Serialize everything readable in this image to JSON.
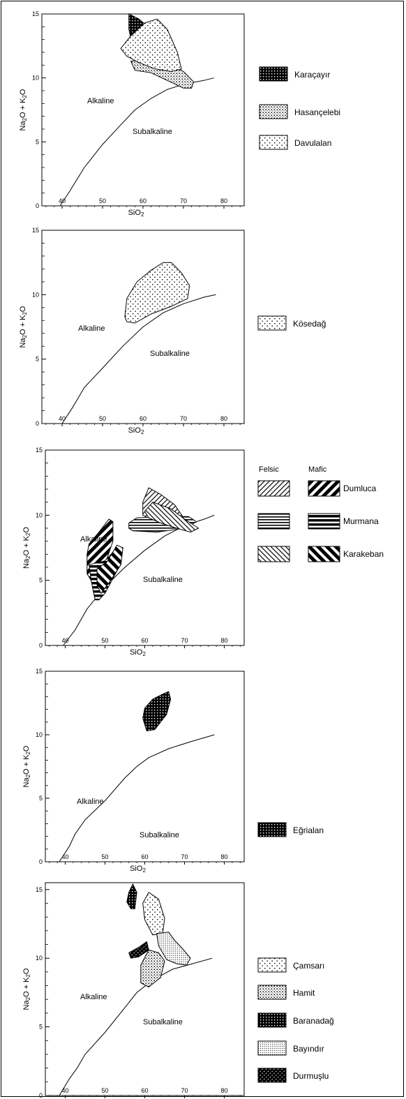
{
  "colors": {
    "ink": "#000000",
    "background": "#ffffff"
  },
  "chart_data": [
    {
      "type": "scatter",
      "title": "",
      "xlabel": "SiO2",
      "ylabel": "Na2O + K2O",
      "xlim": [
        35,
        85
      ],
      "ylim": [
        0,
        15
      ],
      "xticks": [
        "40",
        "50",
        "60",
        "70",
        "80"
      ],
      "yticks": [
        "0",
        "5",
        "10",
        "15"
      ],
      "grid": false,
      "legend_position": "right",
      "region_labels": [
        "Alkaline",
        "Subalkaline"
      ],
      "boundary": [
        [
          39.5,
          0
        ],
        [
          42,
          1.2
        ],
        [
          45.5,
          3
        ],
        [
          50,
          4.8
        ],
        [
          55,
          6.5
        ],
        [
          58,
          7.5
        ],
        [
          62,
          8.4
        ],
        [
          66,
          9.1
        ],
        [
          70,
          9.5
        ],
        [
          75,
          9.8
        ],
        [
          77.5,
          10
        ]
      ],
      "series": [
        {
          "name": "Karaçayır",
          "pattern": "dense",
          "polygon": [
            [
              56.5,
              15
            ],
            [
              59,
              14.6
            ],
            [
              62,
              13.8
            ],
            [
              63,
              12.5
            ],
            [
              62.5,
              11.3
            ],
            [
              61,
              10.8
            ],
            [
              59,
              11.2
            ],
            [
              57.5,
              12.3
            ],
            [
              56.5,
              13.8
            ]
          ]
        },
        {
          "name": "Hasançelebi",
          "pattern": "fine",
          "polygon": [
            [
              57,
              11.3
            ],
            [
              62,
              11.5
            ],
            [
              67,
              11
            ],
            [
              70,
              10.5
            ],
            [
              72.5,
              9.7
            ],
            [
              72,
              9.2
            ],
            [
              70,
              9.2
            ],
            [
              66,
              9.8
            ],
            [
              62,
              10.4
            ],
            [
              58,
              10.6
            ]
          ]
        },
        {
          "name": "Davulalan",
          "pattern": "sparse",
          "polygon": [
            [
              54.5,
              12.3
            ],
            [
              57,
              13.3
            ],
            [
              60.5,
              14.3
            ],
            [
              63.5,
              14.6
            ],
            [
              66,
              13.8
            ],
            [
              68.5,
              12
            ],
            [
              69.5,
              10.7
            ],
            [
              67,
              10.5
            ],
            [
              63,
              10.7
            ],
            [
              59,
              11.2
            ],
            [
              56,
              11.7
            ]
          ]
        }
      ]
    },
    {
      "type": "scatter",
      "title": "",
      "xlabel": "SiO2",
      "ylabel": "Na2O + K2O",
      "xlim": [
        35,
        85
      ],
      "ylim": [
        0,
        15
      ],
      "xticks": [
        "40",
        "50",
        "60",
        "70",
        "80"
      ],
      "yticks": [
        "0",
        "5",
        "10",
        "15"
      ],
      "grid": false,
      "legend_position": "right",
      "region_labels": [
        "Alkaline",
        "Subalkaline"
      ],
      "boundary": [
        [
          40,
          0
        ],
        [
          42.5,
          1.2
        ],
        [
          45.5,
          2.8
        ],
        [
          50,
          4.3
        ],
        [
          55,
          6
        ],
        [
          60,
          7.5
        ],
        [
          65,
          8.6
        ],
        [
          70,
          9.3
        ],
        [
          75,
          9.8
        ],
        [
          78,
          10
        ]
      ],
      "series": [
        {
          "name": "Kösedağ",
          "pattern": "sparse",
          "polygon": [
            [
              55.5,
              8.3
            ],
            [
              56,
              9.7
            ],
            [
              58.5,
              11
            ],
            [
              62,
              11.9
            ],
            [
              65,
              12.5
            ],
            [
              67,
              12.5
            ],
            [
              69.5,
              11.7
            ],
            [
              71.5,
              10.7
            ],
            [
              71,
              9.7
            ],
            [
              67,
              9.1
            ],
            [
              62,
              8.5
            ],
            [
              58,
              7.8
            ],
            [
              56,
              7.9
            ]
          ]
        }
      ]
    },
    {
      "type": "scatter",
      "title": "",
      "xlabel": "SiO2",
      "ylabel": "Na2O + K2O",
      "xlim": [
        35,
        85
      ],
      "ylim": [
        0,
        15
      ],
      "xticks": [
        "40",
        "50",
        "60",
        "70",
        "80"
      ],
      "yticks": [
        "0",
        "5",
        "10",
        "15"
      ],
      "grid": false,
      "legend_position": "right",
      "region_labels": [
        "Alkaline",
        "Subalkaline"
      ],
      "legend_headers": [
        "Felsic",
        "Mafic"
      ],
      "boundary": [
        [
          39.5,
          0
        ],
        [
          42.5,
          1.2
        ],
        [
          45.5,
          2.8
        ],
        [
          50,
          4.5
        ],
        [
          55,
          6
        ],
        [
          60,
          7.3
        ],
        [
          65,
          8.4
        ],
        [
          70,
          9.2
        ],
        [
          75,
          9.7
        ],
        [
          77.5,
          10
        ]
      ],
      "series": [
        {
          "name": "Dumluca",
          "group": "Mafic",
          "pattern": "diag-thick",
          "polygon": [
            [
              46,
              7.8
            ],
            [
              48.5,
              8.7
            ],
            [
              51,
              9.7
            ],
            [
              52,
              9.5
            ],
            [
              52,
              8
            ],
            [
              49.5,
              5.8
            ],
            [
              47.5,
              4.5
            ],
            [
              45.5,
              5.5
            ],
            [
              45.5,
              7
            ]
          ]
        },
        {
          "name": "Dumluca",
          "group": "Felsic",
          "pattern": "diag-thin",
          "polygon": [
            [
              59.5,
              11
            ],
            [
              61,
              12.1
            ],
            [
              64,
              11.6
            ],
            [
              67.5,
              10.8
            ],
            [
              70,
              9.7
            ],
            [
              66,
              9.2
            ],
            [
              62,
              9.6
            ],
            [
              59.5,
              10
            ]
          ]
        },
        {
          "name": "Murmana",
          "group": "Mafic",
          "pattern": "hstripe-thick",
          "polygon": [
            [
              46,
              6.2
            ],
            [
              50,
              6.5
            ],
            [
              53,
              7.5
            ],
            [
              54.5,
              7.5
            ],
            [
              53.5,
              6
            ],
            [
              50,
              4
            ],
            [
              48.5,
              3.5
            ],
            [
              47.5,
              3.5
            ],
            [
              46.5,
              5
            ]
          ]
        },
        {
          "name": "Murmana",
          "group": "Felsic",
          "pattern": "hstripe-thin",
          "polygon": [
            [
              56,
              9.4
            ],
            [
              58,
              9.8
            ],
            [
              66,
              9.9
            ],
            [
              71,
              9.9
            ],
            [
              73,
              9.5
            ],
            [
              70,
              9
            ],
            [
              63,
              8.7
            ],
            [
              57,
              8.8
            ],
            [
              56,
              9
            ]
          ]
        },
        {
          "name": "Karakeban",
          "group": "Mafic",
          "pattern": "anti-diag-thick",
          "polygon": [
            [
              48,
              5.9
            ],
            [
              50.5,
              6.4
            ],
            [
              53,
              7.7
            ],
            [
              54.5,
              7.5
            ],
            [
              54,
              6.2
            ],
            [
              51,
              4.8
            ],
            [
              49,
              4
            ],
            [
              48,
              4.6
            ]
          ]
        },
        {
          "name": "Karakeban",
          "group": "Felsic",
          "pattern": "anti-diag-thin",
          "polygon": [
            [
              60,
              10.3
            ],
            [
              62,
              11
            ],
            [
              66.5,
              10.5
            ],
            [
              70,
              9.7
            ],
            [
              73.5,
              9
            ],
            [
              71.5,
              8.7
            ],
            [
              68,
              9
            ],
            [
              64,
              9.4
            ],
            [
              61,
              9.8
            ]
          ]
        }
      ]
    },
    {
      "type": "scatter",
      "title": "",
      "xlabel": "SiO2",
      "ylabel": "Na2O + K2O",
      "xlim": [
        35,
        85
      ],
      "ylim": [
        0,
        15
      ],
      "xticks": [
        "40",
        "50",
        "60",
        "70",
        "80"
      ],
      "yticks": [
        "0",
        "5",
        "10",
        "15"
      ],
      "grid": false,
      "legend_position": "right",
      "region_labels": [
        "Alkaline",
        "Subalkaline"
      ],
      "boundary": [
        [
          38.5,
          0
        ],
        [
          41,
          1.2
        ],
        [
          42.5,
          2.2
        ],
        [
          45,
          3.3
        ],
        [
          50,
          4.8
        ],
        [
          55,
          6.6
        ],
        [
          58,
          7.5
        ],
        [
          61,
          8.2
        ],
        [
          66,
          8.9
        ],
        [
          72,
          9.5
        ],
        [
          77.5,
          10
        ]
      ],
      "series": [
        {
          "name": "Eğrialan",
          "pattern": "dense",
          "polygon": [
            [
              60,
              12.1
            ],
            [
              62,
              12.8
            ],
            [
              64.5,
              13.2
            ],
            [
              66,
              13.4
            ],
            [
              66.5,
              12.8
            ],
            [
              65.5,
              11.6
            ],
            [
              62.5,
              10.4
            ],
            [
              60.5,
              10.3
            ],
            [
              59.5,
              11.3
            ]
          ]
        }
      ]
    },
    {
      "type": "scatter",
      "title": "",
      "xlabel": "SiO2",
      "ylabel": "Na2O + K2O",
      "xlim": [
        35,
        85
      ],
      "ylim": [
        0,
        15.5
      ],
      "xticks": [
        "40",
        "50",
        "60",
        "70",
        "80"
      ],
      "yticks": [
        "0",
        "5",
        "10",
        "15"
      ],
      "grid": false,
      "legend_position": "right",
      "region_labels": [
        "Alkaline",
        "Subalkaline"
      ],
      "boundary": [
        [
          38.5,
          0
        ],
        [
          41,
          1.2
        ],
        [
          43,
          2
        ],
        [
          45,
          3
        ],
        [
          50,
          4.6
        ],
        [
          55,
          6.4
        ],
        [
          58,
          7.5
        ],
        [
          62,
          8.4
        ],
        [
          67,
          9.2
        ],
        [
          72,
          9.6
        ],
        [
          77,
          10
        ]
      ],
      "series": [
        {
          "name": "Çamsarı",
          "pattern": "sparse",
          "polygon": [
            [
              59.5,
              14
            ],
            [
              61,
              14.8
            ],
            [
              63.5,
              14.3
            ],
            [
              65,
              12.9
            ],
            [
              64.5,
              11.8
            ],
            [
              62,
              11.7
            ],
            [
              60,
              12.8
            ]
          ]
        },
        {
          "name": "Hamit",
          "pattern": "fine",
          "polygon": [
            [
              59,
              9.5
            ],
            [
              61,
              10.6
            ],
            [
              63.5,
              10.4
            ],
            [
              65,
              9.8
            ],
            [
              64,
              8.6
            ],
            [
              61,
              7.9
            ],
            [
              59,
              8.2
            ]
          ]
        },
        {
          "name": "Baranadağ",
          "pattern": "dense",
          "polygon": [
            [
              56,
              14.8
            ],
            [
              57,
              15.4
            ],
            [
              58,
              14.8
            ],
            [
              57.5,
              13.6
            ],
            [
              56.5,
              13.6
            ],
            [
              55.5,
              14.1
            ]
          ]
        },
        {
          "name": "Bayındır",
          "pattern": "diag-fine",
          "polygon": [
            [
              63,
              11.8
            ],
            [
              66,
              11.9
            ],
            [
              67.5,
              11.3
            ],
            [
              69.5,
              10.7
            ],
            [
              71.5,
              10
            ],
            [
              70.5,
              9.5
            ],
            [
              68,
              9.6
            ],
            [
              65.5,
              9.9
            ],
            [
              63.5,
              10.9
            ]
          ]
        },
        {
          "name": "Durmuşlu",
          "pattern": "dark-diag",
          "polygon": [
            [
              56,
              10.4
            ],
            [
              58.5,
              10.8
            ],
            [
              60.5,
              11.2
            ],
            [
              61,
              10.6
            ],
            [
              58.5,
              10.1
            ],
            [
              56.5,
              10
            ]
          ]
        }
      ]
    }
  ]
}
